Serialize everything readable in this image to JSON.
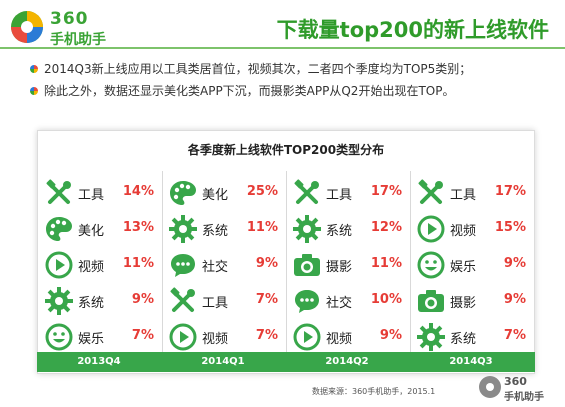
{
  "header": {
    "logo_number": "360",
    "logo_text": "手机助手",
    "title": "下载量top200的新上线软件"
  },
  "bullets": [
    "2014Q3新上线应用以工具类居首位，视频其次，二者四个季度均为TOP5类别；",
    "除此之外，数据还显示美化类APP下沉，而摄影类APP从Q2开始出现在TOP。"
  ],
  "panel": {
    "title": "各季度新上线软件TOP200类型分布",
    "quarters": [
      {
        "label": "2013Q4",
        "items": [
          {
            "icon": "tools-icon",
            "name": "工具",
            "pct": "14%"
          },
          {
            "icon": "palette-icon",
            "name": "美化",
            "pct": "13%"
          },
          {
            "icon": "video-play-icon",
            "name": "视频",
            "pct": "11%"
          },
          {
            "icon": "gear-icon",
            "name": "系统",
            "pct": "9%"
          },
          {
            "icon": "smiley-icon",
            "name": "娱乐",
            "pct": "7%"
          }
        ]
      },
      {
        "label": "2014Q1",
        "items": [
          {
            "icon": "palette-icon",
            "name": "美化",
            "pct": "25%"
          },
          {
            "icon": "gear-icon",
            "name": "系统",
            "pct": "11%"
          },
          {
            "icon": "chat-bubble-icon",
            "name": "社交",
            "pct": "9%"
          },
          {
            "icon": "tools-icon",
            "name": "工具",
            "pct": "7%"
          },
          {
            "icon": "video-play-icon",
            "name": "视频",
            "pct": "7%"
          }
        ]
      },
      {
        "label": "2014Q2",
        "items": [
          {
            "icon": "tools-icon",
            "name": "工具",
            "pct": "17%"
          },
          {
            "icon": "gear-icon",
            "name": "系统",
            "pct": "12%"
          },
          {
            "icon": "camera-icon",
            "name": "摄影",
            "pct": "11%"
          },
          {
            "icon": "chat-bubble-icon",
            "name": "社交",
            "pct": "10%"
          },
          {
            "icon": "video-play-icon",
            "name": "视频",
            "pct": "9%"
          }
        ]
      },
      {
        "label": "2014Q3",
        "items": [
          {
            "icon": "tools-icon",
            "name": "工具",
            "pct": "17%"
          },
          {
            "icon": "video-play-icon",
            "name": "视频",
            "pct": "15%"
          },
          {
            "icon": "smiley-icon",
            "name": "娱乐",
            "pct": "9%"
          },
          {
            "icon": "camera-icon",
            "name": "摄影",
            "pct": "9%"
          },
          {
            "icon": "gear-icon",
            "name": "系统",
            "pct": "7%"
          }
        ]
      }
    ]
  },
  "footer": {
    "source": "数据来源：360手机助手，2015.1",
    "logo_number": "360",
    "logo_text": "手机助手"
  },
  "colors": {
    "green": "#38a64a",
    "red": "#e63c36"
  }
}
